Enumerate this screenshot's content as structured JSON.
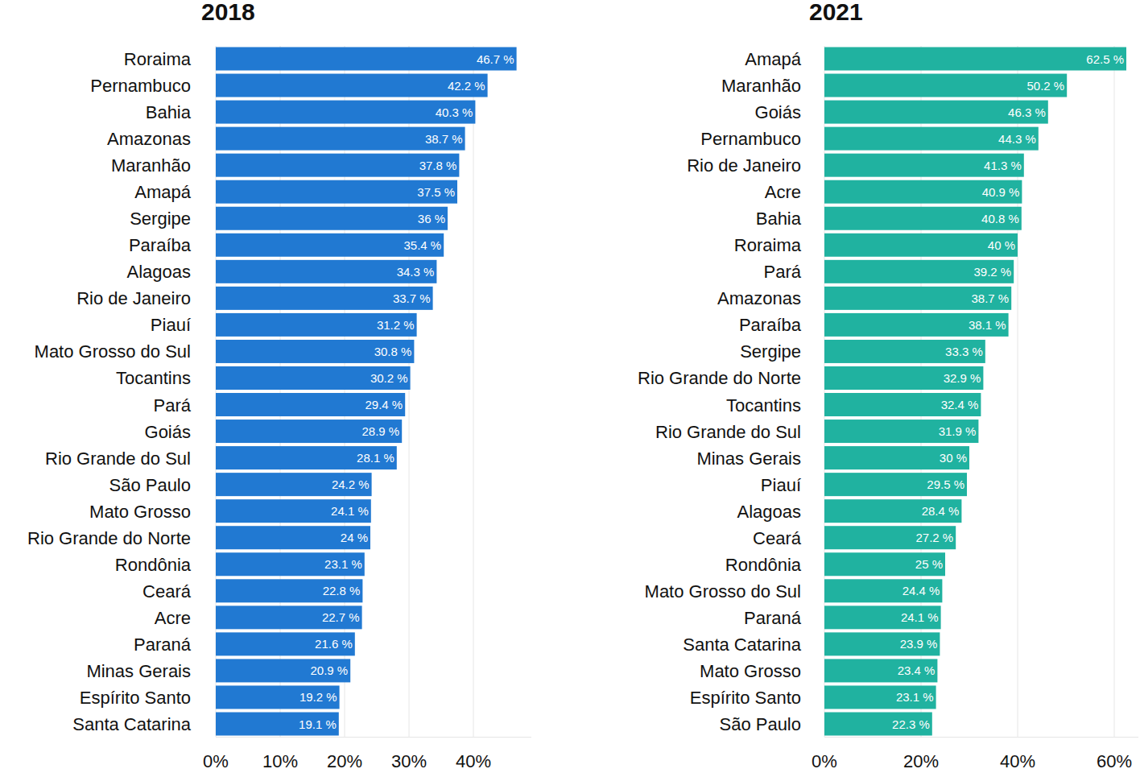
{
  "chart_data": [
    {
      "type": "bar",
      "title": "2018",
      "orientation": "horizontal",
      "data_labels": true,
      "grid": true,
      "color": "#2179d2",
      "categories": [
        "Roraima",
        "Pernambuco",
        "Bahia",
        "Amazonas",
        "Maranhão",
        "Amapá",
        "Sergipe",
        "Paraíba",
        "Alagoas",
        "Rio de Janeiro",
        "Piauí",
        "Mato Grosso do Sul",
        "Tocantins",
        "Pará",
        "Goiás",
        "Rio Grande do Sul",
        "São Paulo",
        "Mato Grosso",
        "Rio Grande do Norte",
        "Rondônia",
        "Ceará",
        "Acre",
        "Paraná",
        "Minas Gerais",
        "Espírito Santo",
        "Santa Catarina"
      ],
      "values": [
        46.7,
        42.2,
        40.3,
        38.7,
        37.8,
        37.5,
        36,
        35.4,
        34.3,
        33.7,
        31.2,
        30.8,
        30.2,
        29.4,
        28.9,
        28.1,
        24.2,
        24.1,
        24,
        23.1,
        22.8,
        22.7,
        21.6,
        20.9,
        19.2,
        19.1
      ],
      "value_labels": [
        "46.7 %",
        "42.2 %",
        "40.3 %",
        "38.7 %",
        "37.8 %",
        "37.5 %",
        "36 %",
        "35.4 %",
        "34.3 %",
        "33.7 %",
        "31.2 %",
        "30.8 %",
        "30.2 %",
        "29.4 %",
        "28.9 %",
        "28.1 %",
        "24.2 %",
        "24.1 %",
        "24 %",
        "23.1 %",
        "22.8 %",
        "22.7 %",
        "21.6 %",
        "20.9 %",
        "19.2 %",
        "19.1 %"
      ],
      "xlim": [
        0,
        49
      ],
      "xticks": [
        {
          "value": 0,
          "label": "0%"
        },
        {
          "value": 10,
          "label": "10%"
        },
        {
          "value": 20,
          "label": "20%"
        },
        {
          "value": 30,
          "label": "30%"
        },
        {
          "value": 40,
          "label": "40%"
        }
      ]
    },
    {
      "type": "bar",
      "title": "2021",
      "orientation": "horizontal",
      "data_labels": true,
      "grid": true,
      "color": "#20b2a0",
      "categories": [
        "Amapá",
        "Maranhão",
        "Goiás",
        "Pernambuco",
        "Rio de Janeiro",
        "Acre",
        "Bahia",
        "Roraima",
        "Pará",
        "Amazonas",
        "Paraíba",
        "Sergipe",
        "Rio Grande do Norte",
        "Tocantins",
        "Rio Grande do Sul",
        "Minas Gerais",
        "Piauí",
        "Alagoas",
        "Ceará",
        "Rondônia",
        "Mato Grosso do Sul",
        "Paraná",
        "Santa Catarina",
        "Mato Grosso",
        "Espírito Santo",
        "São Paulo"
      ],
      "values": [
        62.5,
        50.2,
        46.3,
        44.3,
        41.3,
        40.9,
        40.8,
        40,
        39.2,
        38.7,
        38.1,
        33.3,
        32.9,
        32.4,
        31.9,
        30,
        29.5,
        28.4,
        27.2,
        25,
        24.4,
        24.1,
        23.9,
        23.4,
        23.1,
        22.3
      ],
      "value_labels": [
        "62.5 %",
        "50.2 %",
        "46.3 %",
        "44.3 %",
        "41.3 %",
        "40.9 %",
        "40.8 %",
        "40 %",
        "39.2 %",
        "38.7 %",
        "38.1 %",
        "33.3 %",
        "32.9 %",
        "32.4 %",
        "31.9 %",
        "30 %",
        "29.5 %",
        "28.4 %",
        "27.2 %",
        "25 %",
        "24.4 %",
        "24.1 %",
        "23.9 %",
        "23.4 %",
        "23.1 %",
        "22.3 %"
      ],
      "xlim": [
        0,
        65
      ],
      "xticks": [
        {
          "value": 0,
          "label": "0%"
        },
        {
          "value": 20,
          "label": "20%"
        },
        {
          "value": 40,
          "label": "40%"
        },
        {
          "value": 60,
          "label": "60%"
        }
      ]
    }
  ]
}
